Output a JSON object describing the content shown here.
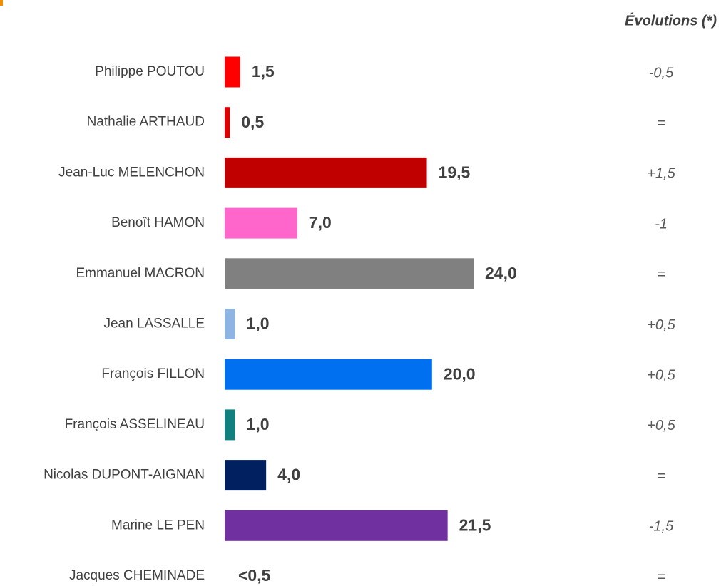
{
  "chart_data": {
    "type": "bar",
    "orientation": "horizontal",
    "categories": [
      "Philippe POUTOU",
      "Nathalie ARTHAUD",
      "Jean-Luc MELENCHON",
      "Benoît HAMON",
      "Emmanuel MACRON",
      "Jean LASSALLE",
      "François FILLON",
      "François ASSELINEAU",
      "Nicolas DUPONT-AIGNAN",
      "Marine LE PEN",
      "Jacques CHEMINADE"
    ],
    "values": [
      1.5,
      0.5,
      19.5,
      7.0,
      24.0,
      1.0,
      20.0,
      1.0,
      4.0,
      21.5,
      null
    ],
    "value_labels": [
      "1,5",
      "0,5",
      "19,5",
      "7,0",
      "24,0",
      "1,0",
      "20,0",
      "1,0",
      "4,0",
      "21,5",
      "<0,5"
    ],
    "colors": [
      "#ff0000",
      "#e00000",
      "#c00000",
      "#ff66cc",
      "#808080",
      "#8db4e2",
      "#0070f0",
      "#138080",
      "#002060",
      "#7030a0",
      null
    ],
    "evolutions_header": "Évolutions (*)",
    "evolutions": [
      "-0,5",
      "=",
      "+1,5",
      "-1",
      "=",
      "+0,5",
      "+0,5",
      "+0,5",
      "=",
      "-1,5",
      "="
    ],
    "xlim": [
      0,
      24
    ]
  }
}
